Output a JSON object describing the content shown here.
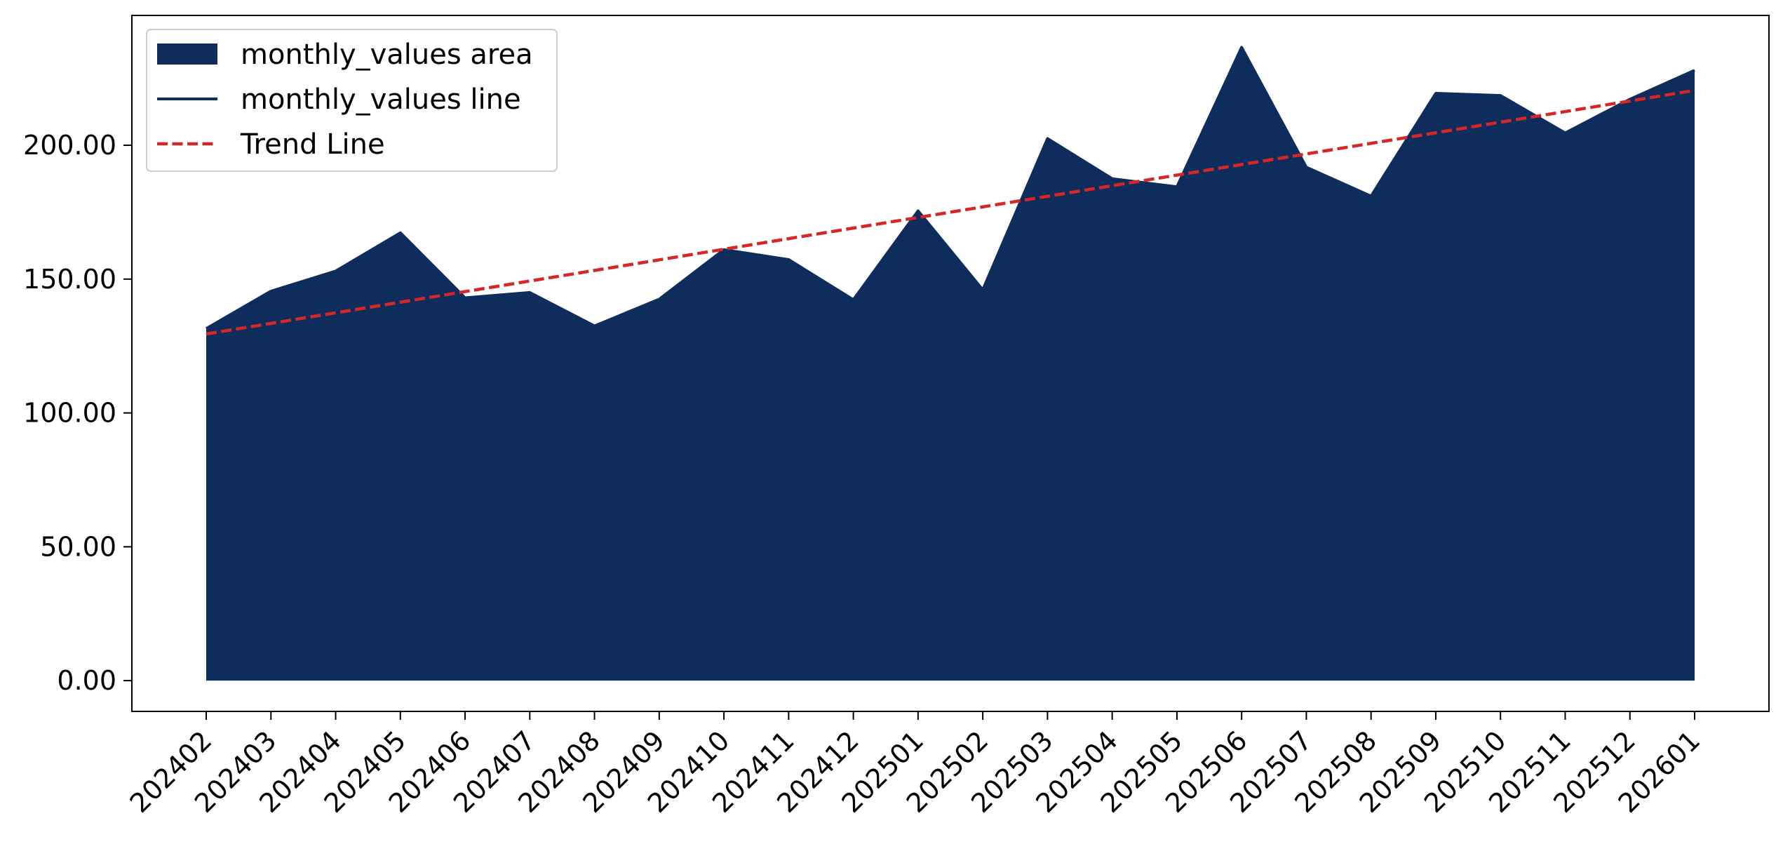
{
  "chart_data": {
    "type": "area",
    "title": "",
    "xlabel": "",
    "ylabel": "",
    "categories": [
      "202402",
      "202403",
      "202404",
      "202405",
      "202406",
      "202407",
      "202408",
      "202409",
      "202410",
      "202411",
      "202412",
      "202501",
      "202502",
      "202503",
      "202504",
      "202505",
      "202506",
      "202507",
      "202508",
      "202509",
      "202510",
      "202511",
      "202512",
      "202601"
    ],
    "series": [
      {
        "name": "monthly_values area",
        "kind": "area",
        "color": "#0e2d5c",
        "values": [
          131.5,
          145.5,
          153.0,
          167.3,
          143.0,
          145.0,
          132.5,
          142.5,
          161.0,
          157.3,
          142.3,
          175.5,
          146.0,
          202.5,
          187.5,
          184.5,
          236.6,
          191.8,
          181.0,
          219.4,
          218.6,
          204.6,
          217.2,
          228.0
        ]
      },
      {
        "name": "monthly_values line",
        "kind": "line",
        "color": "#0e2d5c"
      },
      {
        "name": "Trend Line",
        "kind": "dashed-line",
        "color": "#d62728",
        "start": 129.5,
        "end": 220.5
      }
    ],
    "y_ticks": [
      {
        "value": 0,
        "label": "0.00"
      },
      {
        "value": 50,
        "label": "50.00"
      },
      {
        "value": 100,
        "label": "100.00"
      },
      {
        "value": 150,
        "label": "150.00"
      },
      {
        "value": 200,
        "label": "200.00"
      }
    ],
    "ylim": [
      -11.5,
      248.5
    ],
    "grid": false,
    "legend": {
      "position": "top-left",
      "entries": [
        {
          "label": "monthly_values area",
          "style": "patch",
          "color": "#0e2d5c"
        },
        {
          "label": "monthly_values line",
          "style": "line",
          "color": "#0e2d5c"
        },
        {
          "label": "Trend Line",
          "style": "dashed",
          "color": "#d62728"
        }
      ]
    }
  }
}
